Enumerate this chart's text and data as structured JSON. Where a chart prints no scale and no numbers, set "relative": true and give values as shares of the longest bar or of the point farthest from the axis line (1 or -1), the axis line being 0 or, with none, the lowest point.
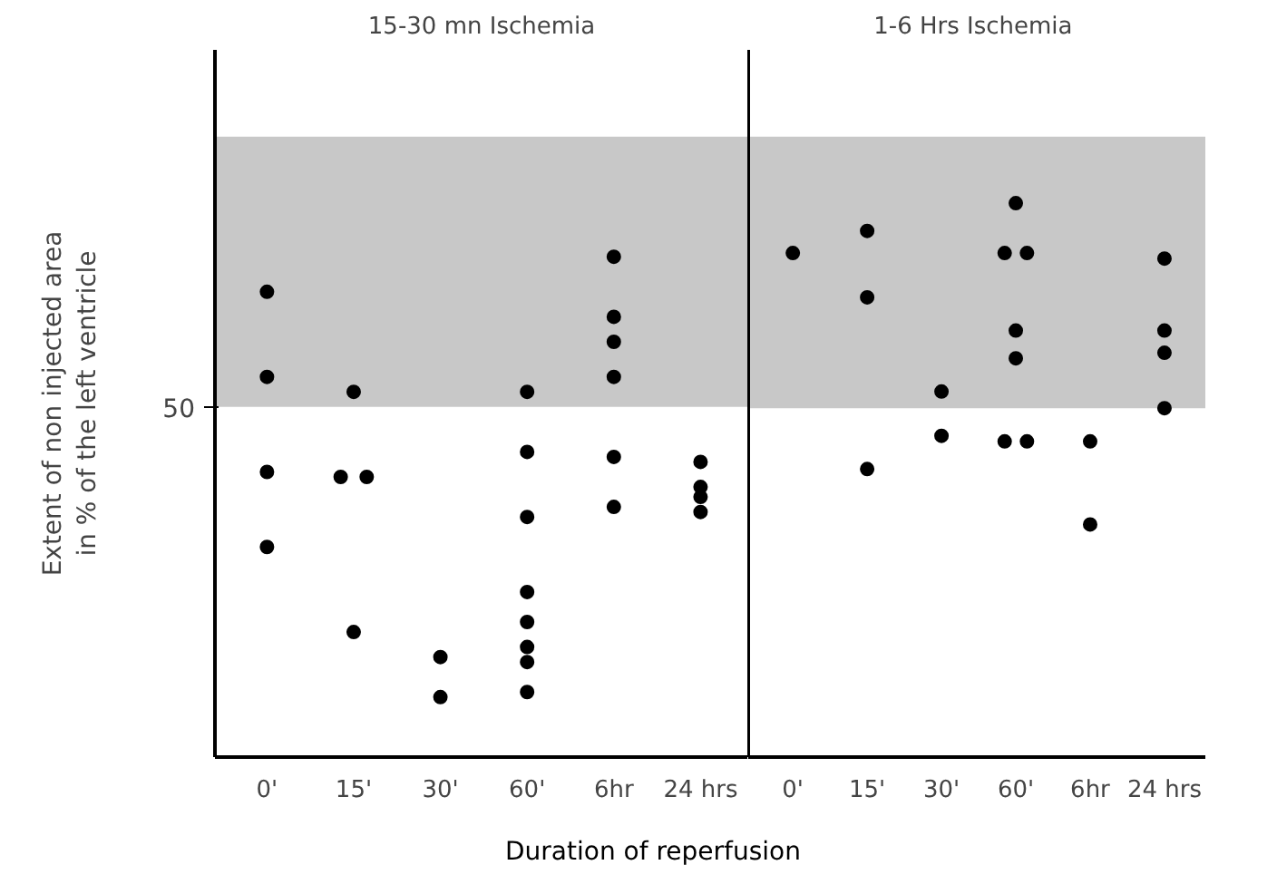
{
  "chart_data": [
    {
      "type": "scatter",
      "title": "15-30 mn Ischemia",
      "xlabel": "Duration of reperfusion",
      "ylabel": "Extent of non injected area\nin % of the left ventricle",
      "relative": true,
      "categories": [
        "0'",
        "15'",
        "30'",
        "60'",
        "6hr",
        "24 hrs"
      ],
      "series": [
        {
          "color": "#000000",
          "x": [
            "0'",
            "0'",
            "0'",
            "0'",
            "15'",
            "15'",
            "15'",
            "15'",
            "30'",
            "30'",
            "60'",
            "60'",
            "60'",
            "60'",
            "60'",
            "60'",
            "60'",
            "60'",
            "6hr",
            "6hr",
            "6hr",
            "6hr",
            "6hr",
            "6hr",
            "24 hrs",
            "24 hrs",
            "24 hrs",
            "24 hrs"
          ],
          "values": [
            0.93,
            0.76,
            0.57,
            0.42,
            0.73,
            0.56,
            0.56,
            0.25,
            0.2,
            0.12,
            0.73,
            0.61,
            0.48,
            0.33,
            0.27,
            0.22,
            0.19,
            0.13,
            1.0,
            0.88,
            0.83,
            0.76,
            0.6,
            0.5,
            0.59,
            0.54,
            0.52,
            0.49
          ]
        }
      ],
      "annotations": [
        "50"
      ],
      "bands": [
        {
          "axis": "y",
          "from": 0.7,
          "to": 1.24,
          "color": "#c8c8c8"
        }
      ],
      "marker": "circle",
      "grid": false
    },
    {
      "type": "scatter",
      "title": "1-6  Hrs Ischemia",
      "relative": true,
      "categories": [
        "0'",
        "15'",
        "30'",
        "60'",
        "6hr",
        "24 hrs"
      ],
      "series": [
        {
          "color": "#000000",
          "x": [
            "0'",
            "15'",
            "15'",
            "15'",
            "30'",
            "30'",
            "60'",
            "60'",
            "60'",
            "60'",
            "60'",
            "60'",
            "60'",
            "6hr",
            "6hr",
            "24 hrs",
            "24 hrs",
            "24 hrs",
            "24 hrs"
          ],
          "values": [
            0.91,
            0.95,
            0.83,
            0.52,
            0.66,
            0.58,
            1.0,
            0.91,
            0.91,
            0.77,
            0.72,
            0.57,
            0.57,
            0.57,
            0.42,
            0.9,
            0.77,
            0.73,
            0.63
          ]
        }
      ],
      "bands": [
        {
          "axis": "y",
          "from": 0.63,
          "to": 1.12,
          "color": "#c8c8c8"
        }
      ],
      "marker": "circle",
      "grid": false
    }
  ]
}
